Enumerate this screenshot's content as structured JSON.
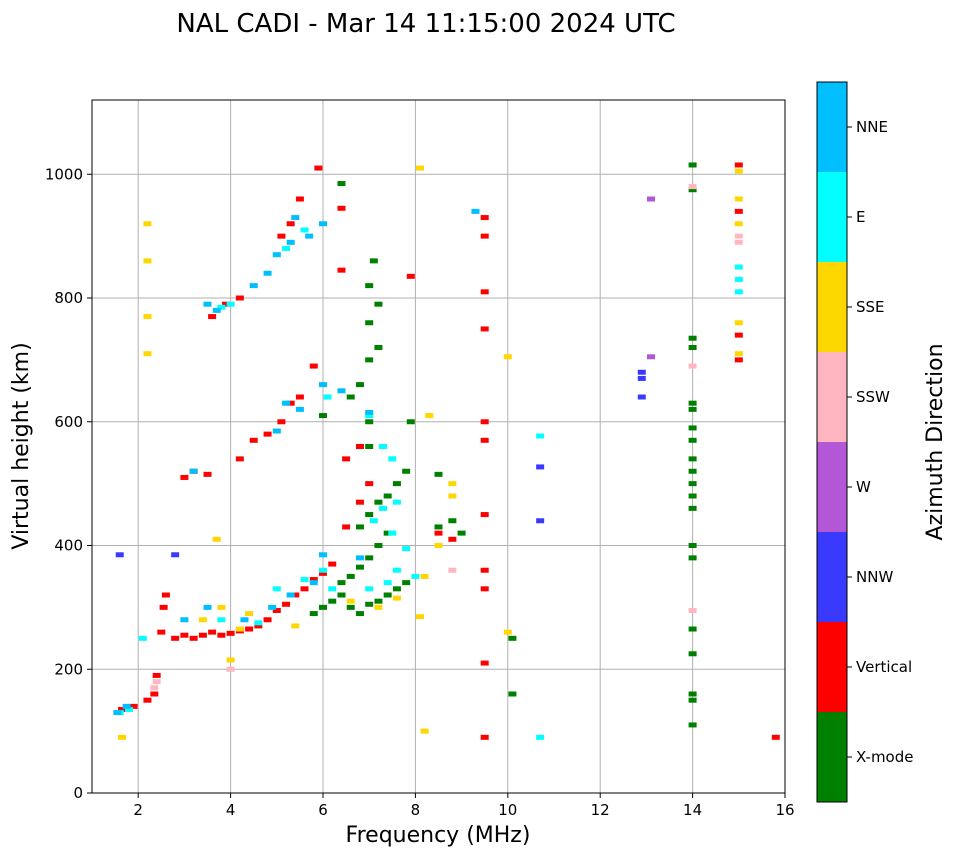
{
  "chart_data": {
    "type": "scatter",
    "title": "NAL CADI - Mar 14 11:15:00 2024 UTC",
    "xlabel": "Frequency (MHz)",
    "ylabel": "Virtual height (km)",
    "xlim": [
      1,
      16
    ],
    "ylim": [
      0,
      1120
    ],
    "xticks": [
      2,
      4,
      6,
      8,
      10,
      12,
      14,
      16
    ],
    "yticks": [
      0,
      200,
      400,
      600,
      800,
      1000
    ],
    "grid": true,
    "colorbar": {
      "label": "Azimuth Direction",
      "categories": [
        {
          "name": "X-mode",
          "color": "#008000"
        },
        {
          "name": "Vertical",
          "color": "#ff0000"
        },
        {
          "name": "NNW",
          "color": "#3a3aff"
        },
        {
          "name": "W",
          "color": "#b357d6"
        },
        {
          "name": "SSW",
          "color": "#ffb6c1"
        },
        {
          "name": "SSE",
          "color": "#ffd700"
        },
        {
          "name": "E",
          "color": "#00ffff"
        },
        {
          "name": "NNE",
          "color": "#00bfff"
        }
      ]
    },
    "series": [
      {
        "name": "Vertical",
        "points": [
          [
            1.65,
            135
          ],
          [
            1.9,
            140
          ],
          [
            2.2,
            150
          ],
          [
            2.35,
            160
          ],
          [
            2.4,
            190
          ],
          [
            2.5,
            260
          ],
          [
            2.55,
            300
          ],
          [
            2.6,
            320
          ],
          [
            2.8,
            250
          ],
          [
            3.0,
            255
          ],
          [
            3.2,
            250
          ],
          [
            3.4,
            255
          ],
          [
            3.6,
            260
          ],
          [
            3.8,
            255
          ],
          [
            4.0,
            258
          ],
          [
            4.2,
            262
          ],
          [
            4.4,
            265
          ],
          [
            4.6,
            270
          ],
          [
            4.8,
            280
          ],
          [
            5.0,
            295
          ],
          [
            5.2,
            305
          ],
          [
            5.4,
            320
          ],
          [
            5.6,
            330
          ],
          [
            5.8,
            345
          ],
          [
            6.0,
            355
          ],
          [
            6.2,
            370
          ],
          [
            6.5,
            430
          ],
          [
            6.8,
            470
          ],
          [
            7.0,
            500
          ],
          [
            8.5,
            420
          ],
          [
            8.8,
            410
          ],
          [
            3.0,
            510
          ],
          [
            3.2,
            520
          ],
          [
            3.5,
            515
          ],
          [
            4.2,
            540
          ],
          [
            4.5,
            570
          ],
          [
            4.8,
            580
          ],
          [
            5.1,
            600
          ],
          [
            5.3,
            630
          ],
          [
            5.5,
            640
          ],
          [
            5.8,
            690
          ],
          [
            6.5,
            540
          ],
          [
            6.8,
            560
          ],
          [
            3.6,
            770
          ],
          [
            3.9,
            790
          ],
          [
            4.2,
            800
          ],
          [
            5.1,
            900
          ],
          [
            5.3,
            920
          ],
          [
            5.5,
            960
          ],
          [
            5.9,
            1010
          ],
          [
            9.5,
            90
          ],
          [
            9.5,
            210
          ],
          [
            9.5,
            330
          ],
          [
            9.5,
            360
          ],
          [
            9.5,
            450
          ],
          [
            9.5,
            570
          ],
          [
            9.5,
            600
          ],
          [
            9.5,
            750
          ],
          [
            9.5,
            810
          ],
          [
            9.5,
            900
          ],
          [
            9.5,
            930
          ],
          [
            15.0,
            700
          ],
          [
            15.0,
            740
          ],
          [
            15.0,
            940
          ],
          [
            15.0,
            1015
          ],
          [
            15.8,
            90
          ],
          [
            6.4,
            845
          ],
          [
            7.9,
            835
          ],
          [
            6.4,
            945
          ]
        ]
      },
      {
        "name": "X-mode",
        "points": [
          [
            5.8,
            290
          ],
          [
            6.0,
            300
          ],
          [
            6.2,
            310
          ],
          [
            6.4,
            320
          ],
          [
            6.6,
            300
          ],
          [
            6.8,
            290
          ],
          [
            7.0,
            305
          ],
          [
            7.2,
            310
          ],
          [
            7.4,
            320
          ],
          [
            7.6,
            330
          ],
          [
            7.8,
            340
          ],
          [
            6.4,
            340
          ],
          [
            6.6,
            350
          ],
          [
            6.8,
            365
          ],
          [
            7.0,
            380
          ],
          [
            7.2,
            400
          ],
          [
            7.4,
            420
          ],
          [
            6.8,
            430
          ],
          [
            7.0,
            450
          ],
          [
            7.2,
            470
          ],
          [
            7.4,
            480
          ],
          [
            7.6,
            500
          ],
          [
            7.8,
            520
          ],
          [
            7.0,
            560
          ],
          [
            7.0,
            600
          ],
          [
            6.6,
            640
          ],
          [
            6.8,
            660
          ],
          [
            7.0,
            700
          ],
          [
            7.2,
            720
          ],
          [
            7.0,
            760
          ],
          [
            7.2,
            790
          ],
          [
            7.0,
            820
          ],
          [
            7.1,
            860
          ],
          [
            6.0,
            610
          ],
          [
            8.5,
            430
          ],
          [
            8.8,
            440
          ],
          [
            9.0,
            420
          ],
          [
            10.1,
            250
          ],
          [
            10.1,
            160
          ],
          [
            14.0,
            110
          ],
          [
            14.0,
            150
          ],
          [
            14.0,
            160
          ],
          [
            14.0,
            225
          ],
          [
            14.0,
            265
          ],
          [
            14.0,
            380
          ],
          [
            14.0,
            400
          ],
          [
            14.0,
            460
          ],
          [
            14.0,
            480
          ],
          [
            14.0,
            500
          ],
          [
            14.0,
            520
          ],
          [
            14.0,
            540
          ],
          [
            14.0,
            570
          ],
          [
            14.0,
            590
          ],
          [
            14.0,
            620
          ],
          [
            14.0,
            630
          ],
          [
            14.0,
            720
          ],
          [
            14.0,
            735
          ],
          [
            14.0,
            975
          ],
          [
            14.0,
            1015
          ],
          [
            6.4,
            985
          ],
          [
            8.5,
            515
          ],
          [
            7.9,
            600
          ]
        ]
      },
      {
        "name": "NNW",
        "points": [
          [
            12.9,
            640
          ],
          [
            12.9,
            670
          ],
          [
            12.9,
            680
          ],
          [
            10.7,
            440
          ],
          [
            10.7,
            527
          ],
          [
            1.6,
            385
          ],
          [
            2.8,
            385
          ]
        ]
      },
      {
        "name": "W",
        "points": [
          [
            13.1,
            960
          ],
          [
            13.1,
            705
          ]
        ]
      },
      {
        "name": "SSW",
        "points": [
          [
            2.35,
            170
          ],
          [
            2.4,
            180
          ],
          [
            14.0,
            295
          ],
          [
            14.0,
            690
          ],
          [
            14.0,
            980
          ],
          [
            15.0,
            900
          ],
          [
            15.0,
            890
          ],
          [
            8.8,
            360
          ],
          [
            4.0,
            200
          ]
        ]
      },
      {
        "name": "SSE",
        "points": [
          [
            1.65,
            90
          ],
          [
            2.2,
            860
          ],
          [
            2.2,
            920
          ],
          [
            2.2,
            770
          ],
          [
            2.2,
            710
          ],
          [
            4.0,
            215
          ],
          [
            4.2,
            265
          ],
          [
            3.4,
            280
          ],
          [
            3.8,
            300
          ],
          [
            4.4,
            290
          ],
          [
            5.4,
            270
          ],
          [
            6.6,
            310
          ],
          [
            7.2,
            300
          ],
          [
            7.6,
            315
          ],
          [
            8.2,
            100
          ],
          [
            8.2,
            350
          ],
          [
            8.1,
            285
          ],
          [
            8.5,
            400
          ],
          [
            8.8,
            480
          ],
          [
            8.8,
            500
          ],
          [
            10.0,
            260
          ],
          [
            10.0,
            705
          ],
          [
            3.7,
            410
          ],
          [
            8.1,
            1010
          ],
          [
            8.3,
            610
          ],
          [
            15.0,
            710
          ],
          [
            15.0,
            760
          ],
          [
            15.0,
            920
          ],
          [
            15.0,
            960
          ],
          [
            15.0,
            1005
          ]
        ]
      },
      {
        "name": "E",
        "points": [
          [
            1.6,
            130
          ],
          [
            1.8,
            135
          ],
          [
            2.1,
            250
          ],
          [
            3.8,
            280
          ],
          [
            4.6,
            275
          ],
          [
            5.0,
            330
          ],
          [
            5.6,
            345
          ],
          [
            6.0,
            360
          ],
          [
            6.2,
            330
          ],
          [
            7.0,
            330
          ],
          [
            7.4,
            340
          ],
          [
            7.6,
            360
          ],
          [
            8.0,
            350
          ],
          [
            7.1,
            440
          ],
          [
            7.3,
            460
          ],
          [
            7.5,
            420
          ],
          [
            7.6,
            470
          ],
          [
            7.8,
            395
          ],
          [
            7.0,
            610
          ],
          [
            7.3,
            560
          ],
          [
            7.5,
            540
          ],
          [
            10.7,
            90
          ],
          [
            10.7,
            577
          ],
          [
            15.0,
            810
          ],
          [
            15.0,
            830
          ],
          [
            15.0,
            850
          ],
          [
            3.8,
            785
          ],
          [
            4.0,
            790
          ],
          [
            5.2,
            880
          ],
          [
            5.6,
            910
          ],
          [
            6.1,
            640
          ]
        ]
      },
      {
        "name": "NNE",
        "points": [
          [
            1.55,
            130
          ],
          [
            1.75,
            140
          ],
          [
            3.0,
            280
          ],
          [
            3.5,
            300
          ],
          [
            4.3,
            280
          ],
          [
            4.9,
            300
          ],
          [
            5.3,
            320
          ],
          [
            5.8,
            340
          ],
          [
            6.0,
            385
          ],
          [
            6.4,
            650
          ],
          [
            6.8,
            380
          ],
          [
            7.0,
            615
          ],
          [
            3.2,
            520
          ],
          [
            3.5,
            790
          ],
          [
            3.7,
            780
          ],
          [
            4.5,
            820
          ],
          [
            4.8,
            840
          ],
          [
            5.0,
            870
          ],
          [
            5.3,
            890
          ],
          [
            5.4,
            930
          ],
          [
            5.7,
            900
          ],
          [
            6.0,
            920
          ],
          [
            9.3,
            940
          ],
          [
            5.0,
            585
          ],
          [
            5.2,
            630
          ],
          [
            5.5,
            620
          ],
          [
            6.0,
            660
          ]
        ]
      }
    ]
  }
}
